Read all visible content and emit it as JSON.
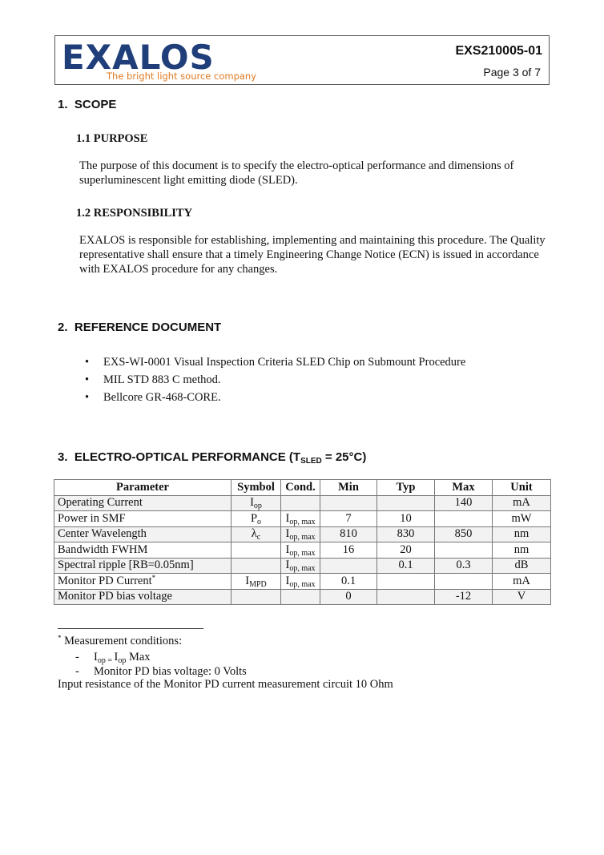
{
  "header": {
    "logo": "EXALOS",
    "tagline": "The bright light source company",
    "doc_id": "EXS210005-01",
    "page": "Page 3 of 7"
  },
  "sections": [
    {
      "number": "1.",
      "title": "SCOPE",
      "subsections": [
        {
          "title": "1.1 PURPOSE",
          "text": "The purpose of this document is to specify the electro-optical performance and dimensions of superluminescent light emitting diode (SLED)."
        },
        {
          "title": "1.2 RESPONSIBILITY",
          "text": "EXALOS is responsible for establishing, implementing and maintaining this procedure.  The Quality representative shall ensure that a timely Engineering Change Notice (ECN) is issued in accordance with EXALOS procedure for any changes."
        }
      ]
    },
    {
      "number": "2.",
      "title": "REFERENCE DOCUMENT",
      "bullets": [
        "EXS-WI-0001 Visual Inspection Criteria SLED Chip on Submount Procedure",
        "MIL STD 883 C method.",
        "Bellcore GR-468-CORE."
      ]
    },
    {
      "number": "3.",
      "title": [
        {
          "text": "ELECTRO-OPTICAL PERFORMANCE  (T"
        },
        {
          "text": "SLED",
          "sub": true
        },
        {
          "text": " = 25°C)"
        }
      ]
    }
  ],
  "table": {
    "header": [
      "Parameter",
      "Symbol",
      "Cond.",
      "Min",
      "Typ",
      "Max",
      "Unit"
    ],
    "rows": [
      [
        "Operating Current",
        [
          {
            "text": "I"
          },
          {
            "text": "op",
            "sub": true
          }
        ],
        null,
        null,
        null,
        140,
        "mA"
      ],
      [
        "Power in SMF",
        [
          {
            "text": "P"
          },
          {
            "text": "o",
            "sub": true
          }
        ],
        [
          {
            "text": "I"
          },
          {
            "text": "op, max",
            "sub": true
          }
        ],
        7,
        10,
        null,
        "mW"
      ],
      [
        "Center Wavelength",
        [
          {
            "text": "λ"
          },
          {
            "text": "c",
            "sub": true
          }
        ],
        [
          {
            "text": "I"
          },
          {
            "text": "op, max",
            "sub": true
          }
        ],
        810,
        830,
        850,
        "nm"
      ],
      [
        "Bandwidth FWHM",
        null,
        [
          {
            "text": "I"
          },
          {
            "text": "op, max",
            "sub": true
          }
        ],
        16,
        20,
        null,
        "nm"
      ],
      [
        "Spectral ripple [RB=0.05nm]",
        null,
        [
          {
            "text": "I"
          },
          {
            "text": "op, max",
            "sub": true
          }
        ],
        null,
        0.1,
        0.3,
        "dB"
      ],
      [
        [
          {
            "text": "Monitor PD Current"
          },
          {
            "text": "*",
            "sup": true
          }
        ],
        [
          {
            "text": "I"
          },
          {
            "text": "MPD",
            "sub": true
          }
        ],
        [
          {
            "text": "I"
          },
          {
            "text": "op, max",
            "sub": true
          }
        ],
        0.1,
        null,
        null,
        "mA"
      ],
      [
        "Monitor PD  bias voltage",
        null,
        null,
        0,
        null,
        -12,
        "V"
      ]
    ]
  },
  "footnote": {
    "heading": [
      {
        "text": "*",
        "sup": true
      },
      {
        "text": " Measurement conditions:"
      }
    ],
    "items": [
      {
        "marker": "-",
        "text": [
          {
            "text": "I"
          },
          {
            "text": "op = ",
            "sub": true
          },
          {
            "text": "I"
          },
          {
            "text": "op",
            "sub": true
          },
          {
            "text": "  Max"
          }
        ]
      },
      {
        "marker": "-",
        "text": "Monitor PD bias voltage: 0 Volts"
      }
    ],
    "note": "Input resistance of the Monitor PD current measurement circuit 10 Ohm"
  }
}
